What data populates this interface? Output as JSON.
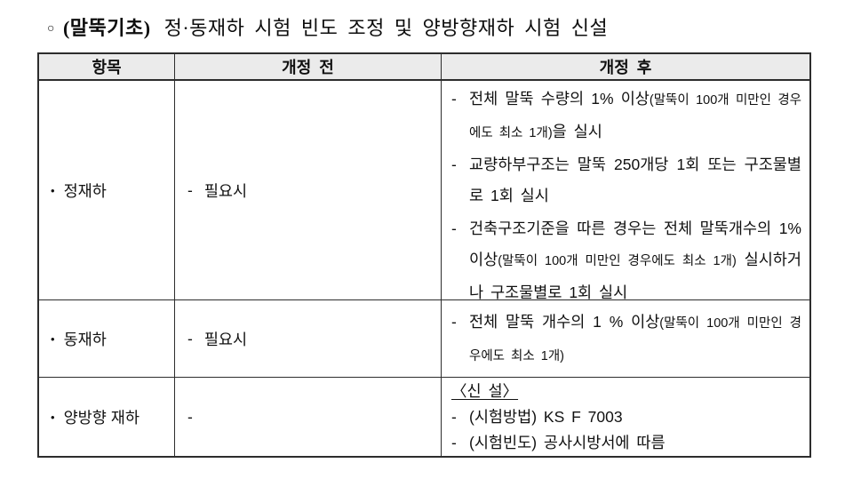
{
  "title": {
    "marker": "○",
    "emphasis": "(말뚝기초)",
    "text": "정·동재하 시험 빈도 조정 및 양방향재하 시험 신설"
  },
  "table": {
    "headers": [
      "항목",
      "개정 전",
      "개정 후"
    ],
    "bullet_char": "•",
    "dash_char": "-",
    "rows": [
      {
        "item": "정재하",
        "before": "필요시",
        "after": {
          "heading": "",
          "bullets": [
            {
              "pre": "전체 말뚝 수량의 1% 이상",
              "paren": "(말뚝이 100개 미만인 경우에도 최소 1개)",
              "post": "을 실시"
            },
            {
              "pre": "교량하부구조는 말뚝 250개당 1회 또는 구조물별로 1회 실시",
              "paren": "",
              "post": ""
            },
            {
              "pre": "건축구조기준을 따른 경우는 전체 말뚝개수의 1% 이상",
              "paren": "(말뚝이 100개 미만인 경우에도 최소 1개)",
              "post": " 실시하거나 구조물별로 1회 실시"
            }
          ]
        }
      },
      {
        "item": "동재하",
        "before": "필요시",
        "after": {
          "heading": "",
          "bullets": [
            {
              "pre": "전체 말뚝 개수의 1 % 이상",
              "paren": "(말뚝이 100개 미만인 경우에도 최소 1개)",
              "post": ""
            }
          ]
        }
      },
      {
        "item": "양방향 재하",
        "before": "",
        "after": {
          "heading": "〈신 설〉",
          "bullets": [
            {
              "pre": "(시험방법) KS F 7003",
              "paren": "",
              "post": ""
            },
            {
              "pre": "(시험빈도) 공사시방서에 따름",
              "paren": "",
              "post": ""
            }
          ]
        }
      }
    ]
  },
  "colors": {
    "header_bg": "#ebebeb",
    "border": "#2d2d2d",
    "text": "#111111"
  }
}
